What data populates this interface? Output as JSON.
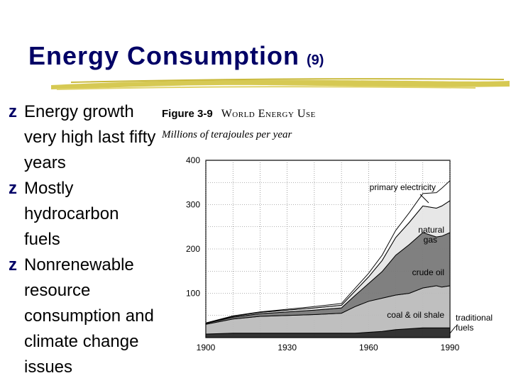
{
  "slide": {
    "title": "Energy Consumption",
    "title_number": "(9)",
    "bullets": [
      "Energy growth very high last fifty years",
      "Mostly hydrocarbon fuels",
      "Nonrenewable resource consumption and climate change issues"
    ],
    "bullet_glyph": "z",
    "colors": {
      "title": "#000066",
      "underline": "#d4c64a"
    }
  },
  "figure": {
    "label": "Figure 3-9",
    "name": "World Energy Use",
    "subtitle": "Millions of terajoules per year"
  },
  "chart_data": {
    "type": "area",
    "title": "World Energy Use",
    "ylabel": "Millions of terajoules per year",
    "x_ticks": [
      1900,
      1930,
      1960,
      1990
    ],
    "y_ticks": [
      100,
      200,
      300,
      400
    ],
    "xlim": [
      1900,
      1990
    ],
    "ylim": [
      0,
      400
    ],
    "x": [
      1900,
      1910,
      1920,
      1930,
      1940,
      1950,
      1955,
      1960,
      1965,
      1970,
      1975,
      1980,
      1985,
      1987,
      1990
    ],
    "series": [
      {
        "name": "traditional fuels",
        "values": [
          8,
          10,
          10,
          10,
          10,
          10,
          10,
          12,
          14,
          18,
          20,
          22,
          22,
          22,
          22
        ],
        "fill": "#2a2a2a"
      },
      {
        "name": "coal & oil shale",
        "values": [
          22,
          32,
          38,
          40,
          42,
          45,
          60,
          70,
          75,
          78,
          80,
          90,
          95,
          92,
          95
        ],
        "fill": "#bcbcbc"
      },
      {
        "name": "crude oil",
        "values": [
          2,
          4,
          6,
          8,
          10,
          12,
          25,
          40,
          60,
          90,
          110,
          125,
          110,
          115,
          120
        ],
        "fill": "#7a7a7a"
      },
      {
        "name": "natural gas",
        "values": [
          1,
          2,
          3,
          4,
          5,
          6,
          10,
          15,
          25,
          40,
          50,
          60,
          65,
          68,
          72
        ],
        "fill": "#e6e6e6"
      },
      {
        "name": "primary electricity",
        "values": [
          0,
          1,
          1,
          2,
          3,
          4,
          6,
          8,
          12,
          16,
          22,
          28,
          35,
          40,
          45
        ],
        "fill": "#ffffff"
      }
    ],
    "labels": [
      "primary electricity",
      "natural gas",
      "crude oil",
      "coal & oil shale",
      "traditional fuels"
    ]
  }
}
